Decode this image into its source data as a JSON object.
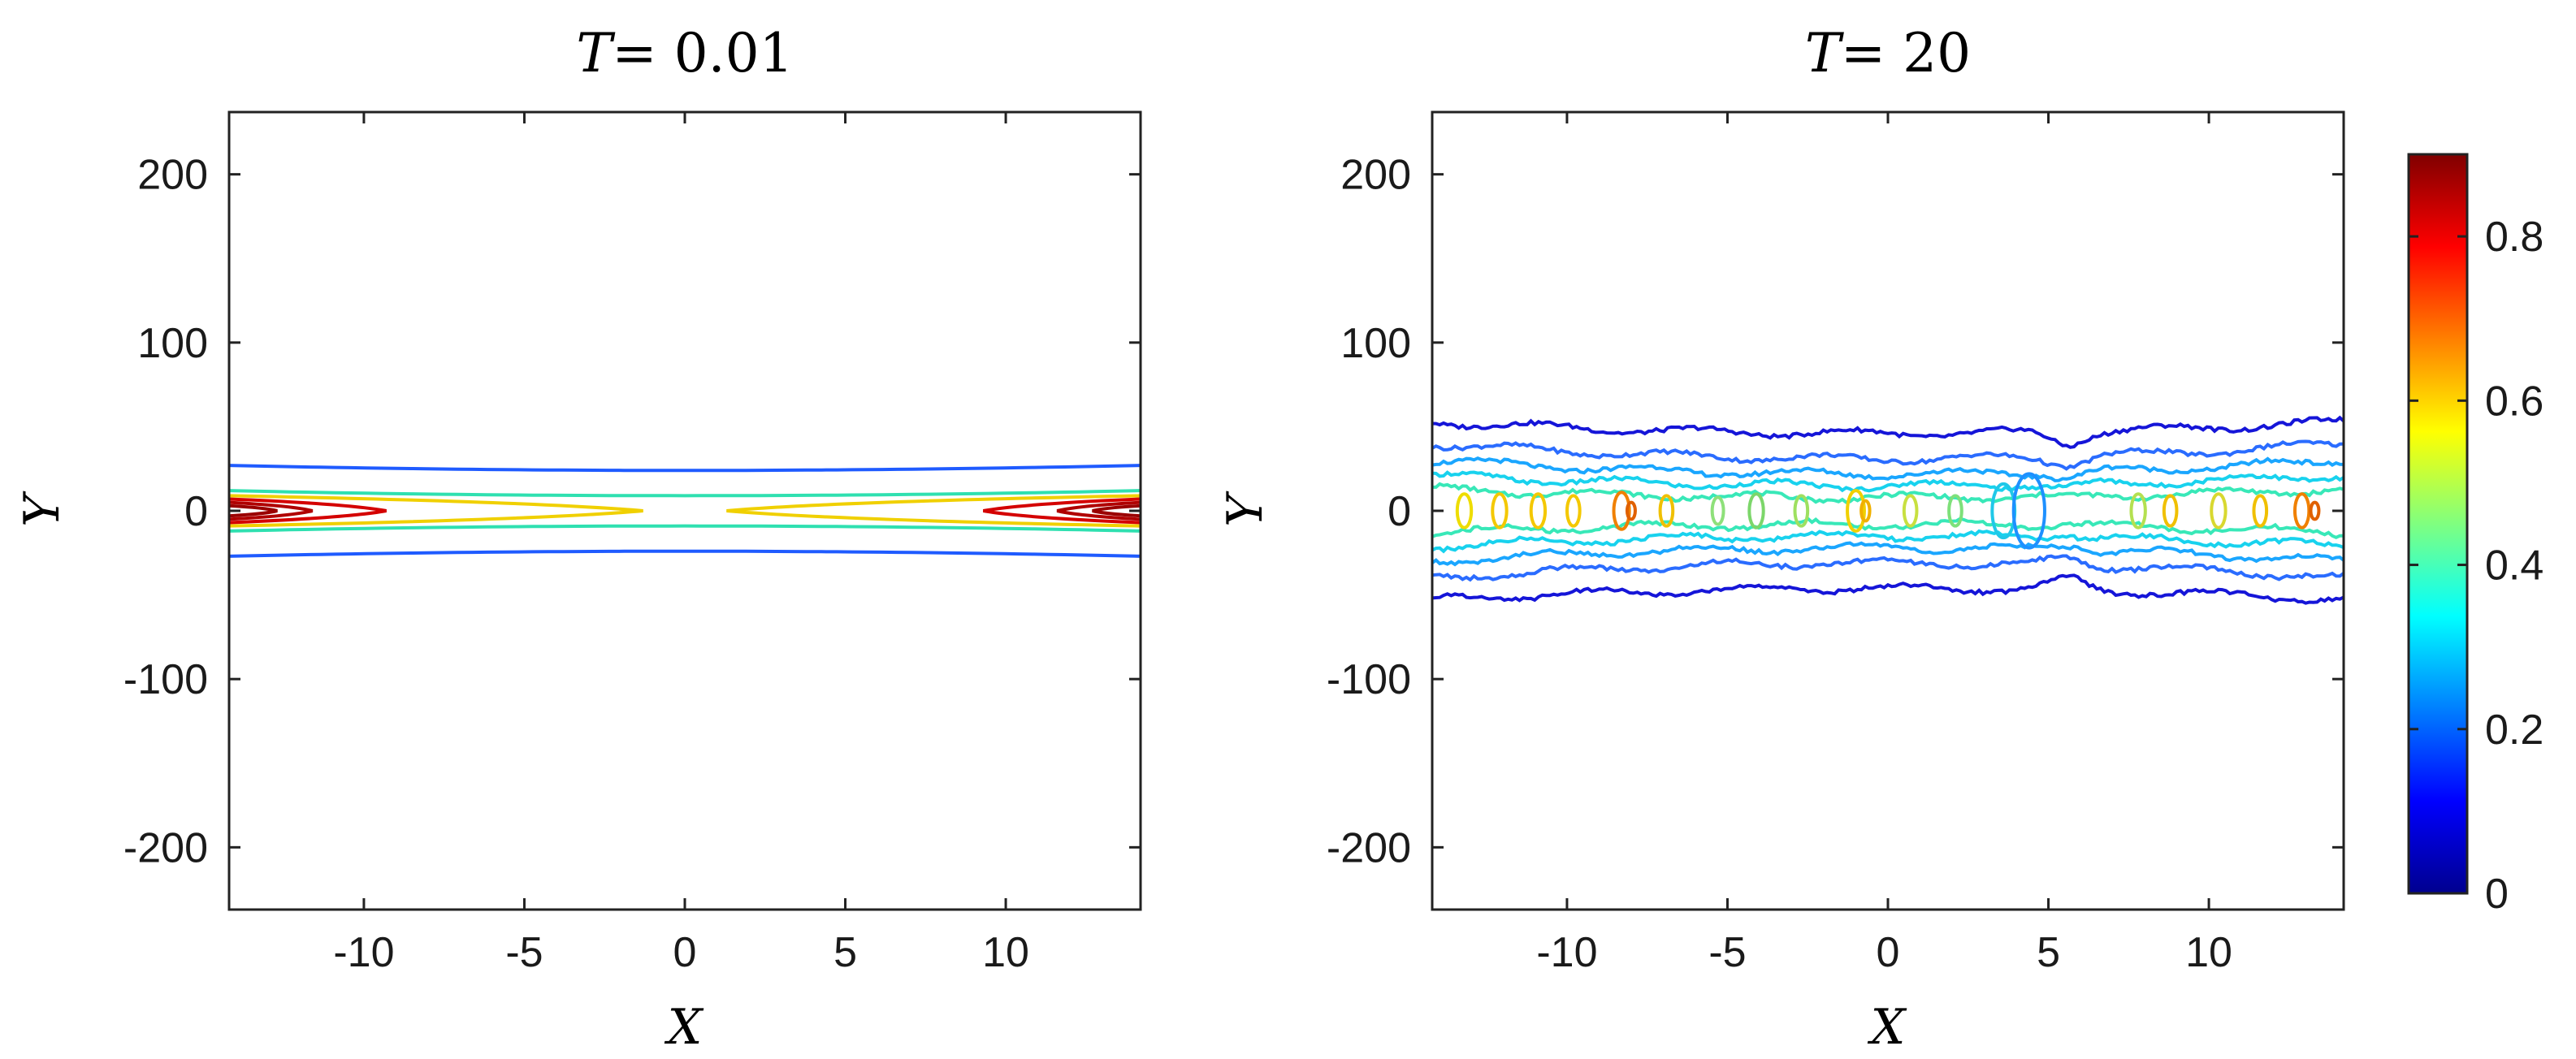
{
  "chart_data": [
    {
      "type": "contour",
      "title": "T = 0.01",
      "title_var": "T",
      "title_value": "= 0.01",
      "xlabel": "X",
      "ylabel": "Y",
      "xlim": [
        -14.2,
        14.2
      ],
      "ylim": [
        -237,
        237
      ],
      "xticks": [
        -10,
        -5,
        0,
        5,
        10
      ],
      "xtick_labels": [
        "-10",
        "-5",
        "0",
        "5",
        "10"
      ],
      "yticks": [
        -200,
        -100,
        0,
        100,
        200
      ],
      "ytick_labels": [
        "-200",
        "-100",
        "0",
        "100",
        "200"
      ],
      "contours": [
        {
          "level": 0.2,
          "color": "#1f5bff",
          "shape": "band",
          "y_center": 24,
          "y_ends": 27
        },
        {
          "level": 0.4,
          "color": "#2fe0b0",
          "shape": "band",
          "y_center": 9,
          "y_ends": 12
        },
        {
          "level": 0.6,
          "color": "#f0d000",
          "shape": "lobe",
          "x_tip": 1.3,
          "y_max": 9
        },
        {
          "level": 0.8,
          "color": "#d40000",
          "shape": "lobe",
          "x_tip": 9.3,
          "y_max": 7
        },
        {
          "level": 0.85,
          "color": "#b00000",
          "shape": "lobe",
          "x_tip": 11.6,
          "y_max": 5
        },
        {
          "level": 0.88,
          "color": "#9a0000",
          "shape": "lobe",
          "x_tip": 12.7,
          "y_max": 3
        }
      ]
    },
    {
      "type": "contour",
      "title": "T = 20",
      "title_var": "T",
      "title_value": "= 20",
      "xlabel": "X",
      "ylabel": "Y",
      "xlim": [
        -14.2,
        14.2
      ],
      "ylim": [
        -237,
        237
      ],
      "xticks": [
        -10,
        -5,
        0,
        5,
        10
      ],
      "xtick_labels": [
        "-10",
        "-5",
        "0",
        "5",
        "10"
      ],
      "yticks": [
        -200,
        -100,
        0,
        100,
        200
      ],
      "ytick_labels": [
        "-200",
        "-100",
        "0",
        "100",
        "200"
      ],
      "contours": [
        {
          "level": 0.1,
          "color": "#1515d8",
          "shape": "band",
          "y_center": 46,
          "y_ends": 53
        },
        {
          "level": 0.2,
          "color": "#2a6cff",
          "shape": "band",
          "y_center": 31,
          "y_ends": 40
        },
        {
          "level": 0.3,
          "color": "#1aa6ff",
          "shape": "band",
          "y_center": 22,
          "y_ends": 30
        },
        {
          "level": 0.35,
          "color": "#18d2ee",
          "shape": "band",
          "y_center": 15,
          "y_ends": 21
        },
        {
          "level": 0.4,
          "color": "#38e8b8",
          "shape": "band",
          "y_center": 8,
          "y_ends": 13
        }
      ],
      "blobs": [
        {
          "x": -13.2,
          "ry": 10,
          "color": "#eedd00"
        },
        {
          "x": -12.1,
          "ry": 10,
          "color": "#f4c800"
        },
        {
          "x": -10.9,
          "ry": 10,
          "color": "#f4c800"
        },
        {
          "x": -9.8,
          "ry": 9,
          "color": "#f4c800"
        },
        {
          "x": -8.3,
          "ry": 11,
          "color": "#f08000"
        },
        {
          "x": -8.0,
          "ry": 5,
          "color": "#e06000"
        },
        {
          "x": -6.9,
          "ry": 9,
          "color": "#f0c000"
        },
        {
          "x": -5.3,
          "ry": 8,
          "color": "#8ee07a"
        },
        {
          "x": -4.1,
          "ry": 10,
          "color": "#7cd66a"
        },
        {
          "x": -2.7,
          "ry": 9,
          "color": "#9ee060"
        },
        {
          "x": -1.0,
          "ry": 12,
          "color": "#f0d000"
        },
        {
          "x": -0.7,
          "ry": 6,
          "color": "#f0b000"
        },
        {
          "x": 0.7,
          "ry": 9,
          "color": "#c8e040"
        },
        {
          "x": 2.1,
          "ry": 9,
          "color": "#7ee07a"
        },
        {
          "x": 3.6,
          "ry": 16,
          "color": "#20c8e8"
        },
        {
          "x": 4.4,
          "ry": 22,
          "color": "#1e90ff"
        },
        {
          "x": 7.8,
          "ry": 10,
          "color": "#b4e050"
        },
        {
          "x": 8.8,
          "ry": 9,
          "color": "#f0c000"
        },
        {
          "x": 10.3,
          "ry": 10,
          "color": "#d8d830"
        },
        {
          "x": 11.6,
          "ry": 9,
          "color": "#f0c000"
        },
        {
          "x": 12.9,
          "ry": 10,
          "color": "#f08000"
        },
        {
          "x": 13.3,
          "ry": 5,
          "color": "#e06000"
        }
      ]
    }
  ],
  "colorbar": {
    "colormap": "jet",
    "range": [
      0,
      0.9
    ],
    "ticks": [
      0,
      0.2,
      0.4,
      0.6,
      0.8
    ],
    "tick_labels": [
      "0",
      "0.2",
      "0.4",
      "0.6",
      "0.8"
    ]
  }
}
